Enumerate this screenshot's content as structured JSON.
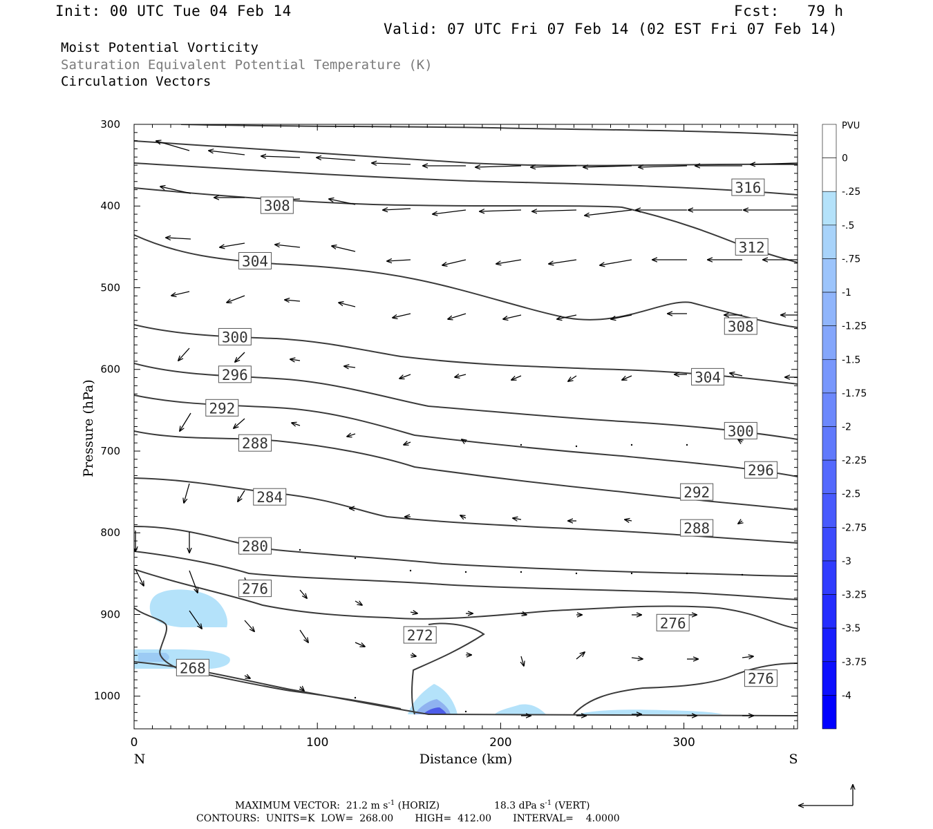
{
  "header": {
    "init": "Init: 00 UTC Tue 04 Feb 14",
    "fcst_label": "Fcst:",
    "fcst_value": "79 h",
    "valid": "Valid: 07 UTC Fri 07 Feb 14 (02 EST Fri 07 Feb 14)",
    "field1": "Moist Potential Vorticity",
    "field2": "Saturation Equivalent Potential Temperature (K)",
    "field3": "Circulation Vectors"
  },
  "footer": {
    "max_vector_label": "MAXIMUM VECTOR:",
    "horiz": "21.2 m s",
    "horiz_exp": "-1",
    "horiz_tag": "(HORIZ)",
    "vert": "18.3 dPa s",
    "vert_exp": "-1",
    "vert_tag": "(VERT)",
    "contours": "CONTOURS:  UNITS=K  LOW=  268.00       HIGH=  412.00       INTERVAL=    4.0000"
  },
  "colors": {
    "contour": "#3a3a3a",
    "pv_light": "#b4e2fa",
    "pv_mid": "#8fb2f0",
    "pv_dark": "#4d5ce8"
  },
  "chart_data": {
    "type": "contour",
    "xlabel": "Distance (km)",
    "ylabel": "Pressure (hPa)",
    "xlim": [
      0,
      362
    ],
    "ylim": [
      1040,
      300
    ],
    "x_ticks": [
      0,
      100,
      200,
      300
    ],
    "y_ticks": [
      300,
      400,
      500,
      600,
      700,
      800,
      900,
      1000
    ],
    "x_end_labels": {
      "left": "N",
      "right": "S"
    },
    "pv_colorbar": {
      "unit": "PVU",
      "levels": [
        "0",
        "-.25",
        "-.5",
        "-.75",
        "-1",
        "-1.25",
        "-1.5",
        "-1.75",
        "-2",
        "-2.25",
        "-2.5",
        "-2.75",
        "-3",
        "-3.25",
        "-3.5",
        "-3.75",
        "-4"
      ]
    },
    "contour_labels": [
      {
        "value": "316",
        "x": 335,
        "p": 377
      },
      {
        "value": "312",
        "x": 337,
        "p": 450
      },
      {
        "value": "308",
        "x": 78,
        "p": 399
      },
      {
        "value": "308",
        "x": 331,
        "p": 547
      },
      {
        "value": "304",
        "x": 66,
        "p": 467
      },
      {
        "value": "304",
        "x": 313,
        "p": 609
      },
      {
        "value": "300",
        "x": 55,
        "p": 560
      },
      {
        "value": "300",
        "x": 331,
        "p": 675
      },
      {
        "value": "296",
        "x": 55,
        "p": 606
      },
      {
        "value": "296",
        "x": 342,
        "p": 723
      },
      {
        "value": "292",
        "x": 48,
        "p": 647
      },
      {
        "value": "292",
        "x": 307,
        "p": 750
      },
      {
        "value": "288",
        "x": 66,
        "p": 690
      },
      {
        "value": "288",
        "x": 307,
        "p": 794
      },
      {
        "value": "284",
        "x": 74,
        "p": 756
      },
      {
        "value": "280",
        "x": 66,
        "p": 816
      },
      {
        "value": "276",
        "x": 66,
        "p": 868
      },
      {
        "value": "276",
        "x": 294,
        "p": 910
      },
      {
        "value": "276",
        "x": 342,
        "p": 978
      },
      {
        "value": "272",
        "x": 156,
        "p": 925
      },
      {
        "value": "268",
        "x": 32,
        "p": 965
      }
    ]
  }
}
